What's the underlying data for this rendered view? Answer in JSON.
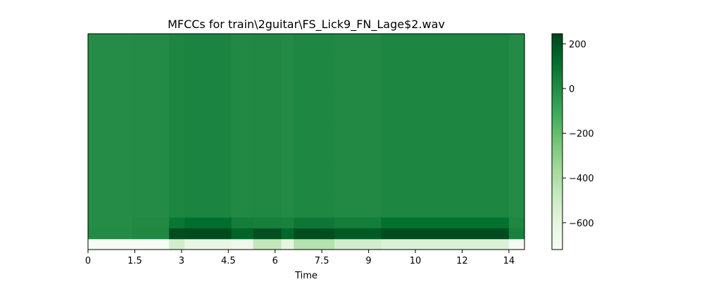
{
  "chart_data": {
    "type": "heatmap",
    "title": "MFCCs for train\\2guitar\\FS_Lick9_FN_Lage$2.wav",
    "xlabel": "Time",
    "ylabel": "",
    "xlim": [
      0,
      14.0
    ],
    "x_ticks": [
      {
        "value": 0,
        "label": "0"
      },
      {
        "value": 1.5,
        "label": "1.5"
      },
      {
        "value": 3,
        "label": "3"
      },
      {
        "value": 4.5,
        "label": "4.5"
      },
      {
        "value": 6,
        "label": "6"
      },
      {
        "value": 7.5,
        "label": "7.5"
      },
      {
        "value": 9,
        "label": "9"
      },
      {
        "value": 10.5,
        "label": "10"
      },
      {
        "value": 12,
        "label": "12"
      },
      {
        "value": 13.5,
        "label": "14"
      }
    ],
    "n_coefficients": 20,
    "colormap": "Greens",
    "colorbar": {
      "vmin": -720,
      "vmax": 245,
      "ticks": [
        200,
        0,
        -200,
        -400,
        -600
      ],
      "tick_labels": [
        "200",
        "0",
        "−200",
        "−400",
        "−600"
      ]
    },
    "time_segments": [
      {
        "start": 0.0,
        "end": 1.4,
        "mfcc0": -715,
        "mfcc1": 5,
        "mfcc2": 0,
        "upper": 0
      },
      {
        "start": 1.4,
        "end": 2.6,
        "mfcc0": -710,
        "mfcc1": 15,
        "mfcc2": 10,
        "upper": 5
      },
      {
        "start": 2.6,
        "end": 3.1,
        "mfcc0": -520,
        "mfcc1": 215,
        "mfcc2": 90,
        "upper": 25
      },
      {
        "start": 3.1,
        "end": 4.6,
        "mfcc0": -620,
        "mfcc1": 225,
        "mfcc2": 120,
        "upper": 30
      },
      {
        "start": 4.6,
        "end": 5.3,
        "mfcc0": -660,
        "mfcc1": 150,
        "mfcc2": 60,
        "upper": 10
      },
      {
        "start": 5.3,
        "end": 6.2,
        "mfcc0": -460,
        "mfcc1": 210,
        "mfcc2": 50,
        "upper": 15
      },
      {
        "start": 6.2,
        "end": 6.6,
        "mfcc0": -600,
        "mfcc1": 140,
        "mfcc2": 40,
        "upper": 5
      },
      {
        "start": 6.6,
        "end": 7.9,
        "mfcc0": -420,
        "mfcc1": 215,
        "mfcc2": 80,
        "upper": 20
      },
      {
        "start": 7.9,
        "end": 9.4,
        "mfcc0": -520,
        "mfcc1": 180,
        "mfcc2": 60,
        "upper": 10
      },
      {
        "start": 9.4,
        "end": 13.5,
        "mfcc0": -560,
        "mfcc1": 220,
        "mfcc2": 110,
        "upper": 25
      },
      {
        "start": 13.5,
        "end": 14.0,
        "mfcc0": -700,
        "mfcc1": 40,
        "mfcc2": 20,
        "upper": 5
      }
    ]
  }
}
